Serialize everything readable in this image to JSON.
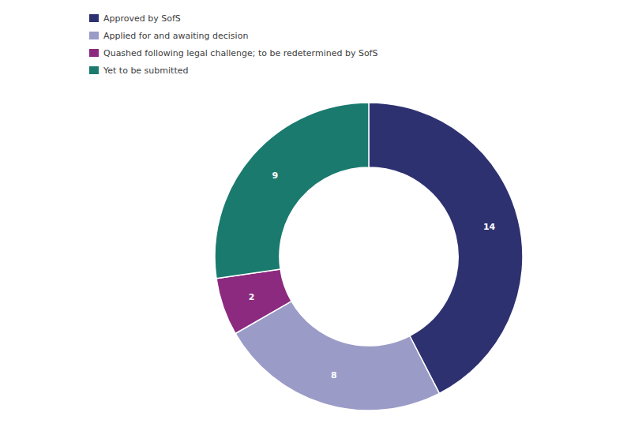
{
  "chart_data": {
    "type": "donut",
    "categories": [
      "Approved by SofS",
      "Applied for and awaiting decision",
      "Quashed following legal challenge; to be redetermined by SofS",
      "Yet to be submitted"
    ],
    "values": [
      14,
      8,
      2,
      9
    ],
    "colors": [
      "#2e3170",
      "#9b9bc8",
      "#8b2a7e",
      "#1a7a6e"
    ],
    "data_labels": true,
    "legend": "top-left"
  }
}
